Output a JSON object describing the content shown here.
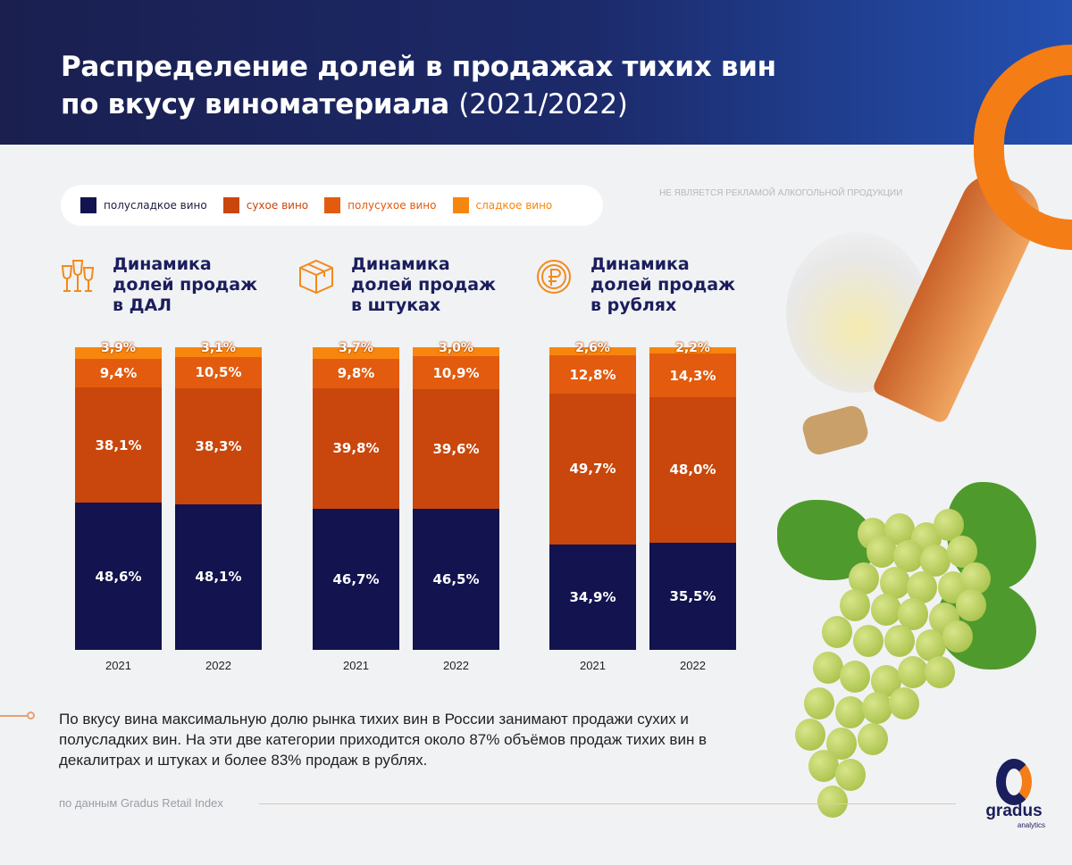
{
  "header": {
    "title_line1": "Распределение долей в продажах тихих вин",
    "title_line2": "по вкусу виноматериала",
    "title_years": "(2021/2022)"
  },
  "disclaimer": "НЕ ЯВЛЯЕТСЯ РЕКЛАМОЙ АЛКОГОЛЬНОЙ ПРОДУКЦИИ",
  "legend": [
    {
      "label": "полусладкое вино",
      "color": "#12134f"
    },
    {
      "label": "сухое вино",
      "color": "#c9470c"
    },
    {
      "label": "полусухое вино",
      "color": "#e25b0f"
    },
    {
      "label": "сладкое вино",
      "color": "#f7860f"
    }
  ],
  "chart_data": [
    {
      "type": "bar",
      "stacked": true,
      "title": "Динамика долей продаж в ДАЛ",
      "icon": "wine-glasses-icon",
      "categories": [
        "2021",
        "2022"
      ],
      "series": [
        {
          "name": "полусладкое вино",
          "values": [
            48.6,
            48.1
          ]
        },
        {
          "name": "сухое вино",
          "values": [
            38.1,
            38.3
          ]
        },
        {
          "name": "полусухое вино",
          "values": [
            9.4,
            10.5
          ]
        },
        {
          "name": "сладкое вино",
          "values": [
            3.9,
            3.1
          ]
        }
      ],
      "labels": [
        [
          "48,6%",
          "38,1%",
          "9,4%",
          "3,9%"
        ],
        [
          "48,1%",
          "38,3%",
          "10,5%",
          "3,1%"
        ]
      ]
    },
    {
      "type": "bar",
      "stacked": true,
      "title": "Динамика долей продаж в штуках",
      "icon": "box-icon",
      "categories": [
        "2021",
        "2022"
      ],
      "series": [
        {
          "name": "полусладкое вино",
          "values": [
            46.7,
            46.5
          ]
        },
        {
          "name": "сухое вино",
          "values": [
            39.8,
            39.6
          ]
        },
        {
          "name": "полусухое вино",
          "values": [
            9.8,
            10.9
          ]
        },
        {
          "name": "сладкое вино",
          "values": [
            3.7,
            3.0
          ]
        }
      ],
      "labels": [
        [
          "46,7%",
          "39,8%",
          "9,8%",
          "3,7%"
        ],
        [
          "46,5%",
          "39,6%",
          "10,9%",
          "3,0%"
        ]
      ]
    },
    {
      "type": "bar",
      "stacked": true,
      "title": "Динамика долей продаж в рублях",
      "icon": "ruble-coin-icon",
      "categories": [
        "2021",
        "2022"
      ],
      "series": [
        {
          "name": "полусладкое вино",
          "values": [
            34.9,
            35.5
          ]
        },
        {
          "name": "сухое вино",
          "values": [
            49.7,
            48.0
          ]
        },
        {
          "name": "полусухое вино",
          "values": [
            12.8,
            14.3
          ]
        },
        {
          "name": "сладкое вино",
          "values": [
            2.6,
            2.2
          ]
        }
      ],
      "labels": [
        [
          "34,9%",
          "49,7%",
          "12,8%",
          "2,6%"
        ],
        [
          "35,5%",
          "48,0%",
          "14,3%",
          "2,2%"
        ]
      ]
    }
  ],
  "chart_titles": [
    [
      "Динамика",
      "долей продаж",
      "в ДАЛ"
    ],
    [
      "Динамика",
      "долей продаж",
      "в штуках"
    ],
    [
      "Динамика",
      "долей продаж",
      "в рублях"
    ]
  ],
  "note": "По вкусу вина максимальную долю рынка тихих вин в России занимают продажи сухих и полусладких вин. На эти две категории приходится около 87% объёмов продаж тихих вин в декалитрах и штуках и более 83% продаж в рублях.",
  "source": "по данным Gradus Retail Index",
  "logo": {
    "name": "gradus",
    "sub": "analytics"
  }
}
